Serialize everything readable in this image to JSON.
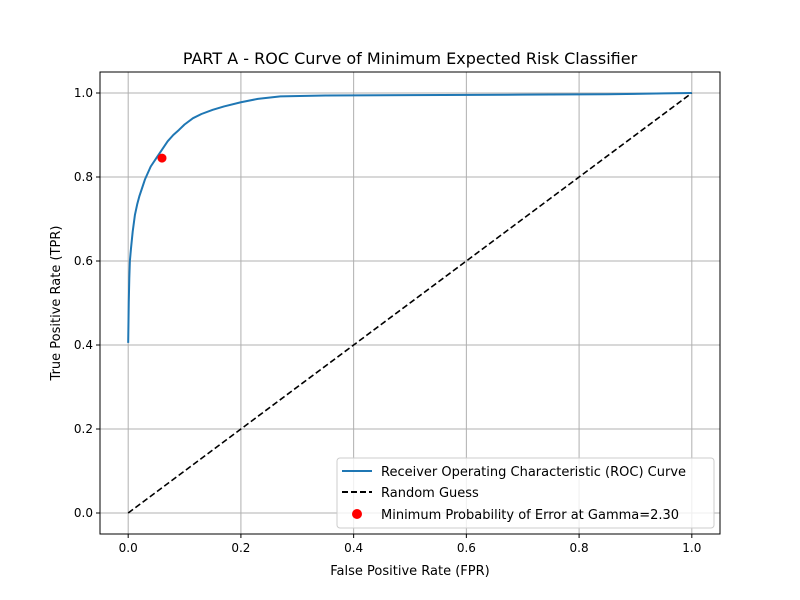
{
  "chart_data": {
    "type": "line",
    "title": "PART A - ROC Curve of Minimum Expected Risk Classifier",
    "xlabel": "False Positive Rate (FPR)",
    "ylabel": "True Positive Rate (TPR)",
    "xlim": [
      -0.05,
      1.05
    ],
    "ylim": [
      -0.05,
      1.05
    ],
    "xticks": [
      0.0,
      0.2,
      0.4,
      0.6,
      0.8,
      1.0
    ],
    "yticks": [
      0.0,
      0.2,
      0.4,
      0.6,
      0.8,
      1.0
    ],
    "xtick_labels": [
      "0.0",
      "0.2",
      "0.4",
      "0.6",
      "0.8",
      "1.0"
    ],
    "ytick_labels": [
      "0.0",
      "0.2",
      "0.4",
      "0.6",
      "0.8",
      "1.0"
    ],
    "grid": true,
    "legend_position": "lower-right",
    "series": [
      {
        "name": "Receiver Operating Characteristic (ROC) Curve",
        "kind": "line",
        "color": "#1f77b4",
        "x": [
          0.0,
          0.001,
          0.002,
          0.003,
          0.005,
          0.008,
          0.012,
          0.016,
          0.02,
          0.025,
          0.03,
          0.04,
          0.05,
          0.06,
          0.07,
          0.08,
          0.09,
          0.1,
          0.115,
          0.13,
          0.15,
          0.17,
          0.2,
          0.23,
          0.27,
          0.35,
          0.5,
          0.7,
          0.85,
          0.95,
          1.0
        ],
        "y": [
          0.405,
          0.5,
          0.56,
          0.6,
          0.63,
          0.67,
          0.71,
          0.735,
          0.755,
          0.775,
          0.795,
          0.825,
          0.845,
          0.865,
          0.885,
          0.9,
          0.912,
          0.925,
          0.94,
          0.95,
          0.96,
          0.968,
          0.978,
          0.986,
          0.992,
          0.994,
          0.995,
          0.996,
          0.997,
          0.999,
          1.0
        ]
      },
      {
        "name": "Random Guess",
        "kind": "dashed-line",
        "color": "#000000",
        "x": [
          0.0,
          1.0
        ],
        "y": [
          0.0,
          1.0
        ]
      },
      {
        "name": "Minimum Probability of Error at Gamma=2.30",
        "kind": "point",
        "color": "#ff0000",
        "x": [
          0.06
        ],
        "y": [
          0.845
        ]
      }
    ]
  }
}
